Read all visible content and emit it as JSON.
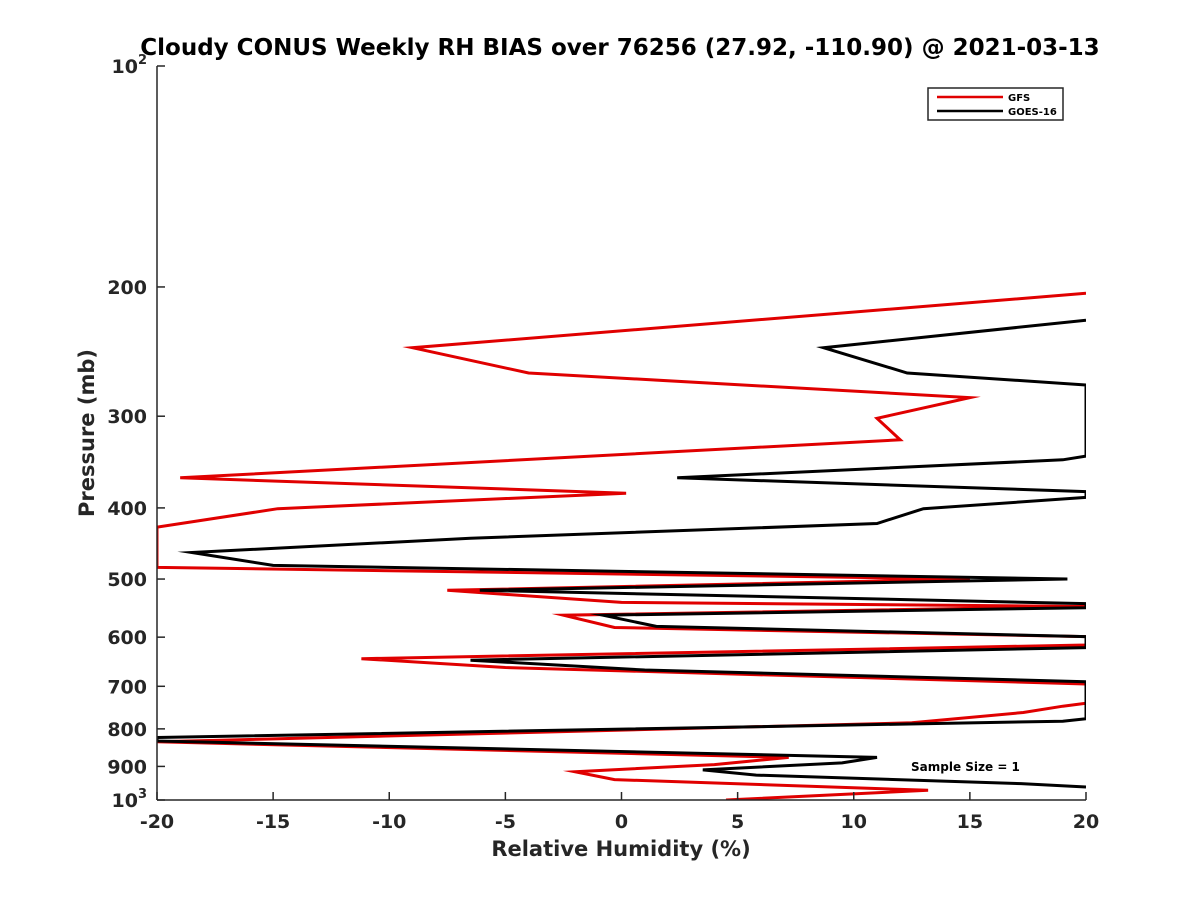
{
  "chart_data": {
    "type": "line",
    "title": "Cloudy CONUS Weekly RH BIAS over 76256 (27.92, -110.90) @ 2021-03-13",
    "xlabel": "Relative Humidity (%)",
    "ylabel": "Pressure (mb)",
    "xlim": [
      -20,
      20
    ],
    "ylim": [
      100,
      1000
    ],
    "y_scale": "log",
    "y_reversed": true,
    "grid": false,
    "legend_position": "top-right",
    "x_ticks": [
      "-20",
      "-15",
      "-10",
      "-5",
      "0",
      "5",
      "10",
      "15",
      "20"
    ],
    "y_ticks": [
      {
        "value": 100,
        "base": "10",
        "exp": "2"
      },
      {
        "value": 200,
        "label": "200"
      },
      {
        "value": 300,
        "label": "300"
      },
      {
        "value": 400,
        "label": "400"
      },
      {
        "value": 500,
        "label": "500"
      },
      {
        "value": 600,
        "label": "600"
      },
      {
        "value": 700,
        "label": "700"
      },
      {
        "value": 800,
        "label": "800"
      },
      {
        "value": 900,
        "label": "900"
      },
      {
        "value": 1000,
        "base": "10",
        "exp": "3"
      }
    ],
    "annotation": "Sample Size = 1",
    "series": [
      {
        "name": "GFS",
        "color": "#e00000",
        "points": [
          [
            20,
            204
          ],
          [
            -9,
            242
          ],
          [
            -4,
            262
          ],
          [
            15,
            283
          ],
          [
            11,
            302
          ],
          [
            12,
            323
          ],
          [
            -19,
            364
          ],
          [
            0.2,
            382
          ],
          [
            -14.8,
            401
          ],
          [
            -20,
            425
          ],
          [
            -20,
            482
          ],
          [
            15,
            500
          ],
          [
            -7.5,
            518
          ],
          [
            0,
            538
          ],
          [
            20,
            545
          ],
          [
            -2.5,
            560
          ],
          [
            -0.3,
            582
          ],
          [
            20,
            599
          ],
          [
            20,
            615
          ],
          [
            -11.2,
            642
          ],
          [
            -5,
            660
          ],
          [
            20,
            695
          ],
          [
            20,
            738
          ],
          [
            19,
            745
          ],
          [
            17.3,
            760
          ],
          [
            12.5,
            785
          ],
          [
            -20,
            833
          ],
          [
            7.2,
            875
          ],
          [
            4,
            895
          ],
          [
            -2,
            915
          ],
          [
            -0.3,
            938
          ],
          [
            13.2,
            970
          ],
          [
            4.5,
            1000
          ]
        ]
      },
      {
        "name": "GOES-16",
        "color": "#000000",
        "points": [
          [
            20,
            222
          ],
          [
            8.7,
            242
          ],
          [
            12.3,
            262
          ],
          [
            20,
            272
          ],
          [
            20,
            340
          ],
          [
            19,
            344
          ],
          [
            2.4,
            364
          ],
          [
            20,
            380
          ],
          [
            20,
            387
          ],
          [
            13,
            401
          ],
          [
            11,
            420
          ],
          [
            -6.5,
            440
          ],
          [
            -18.5,
            460
          ],
          [
            -15,
            479
          ],
          [
            19.2,
            500
          ],
          [
            -6.1,
            518
          ],
          [
            20,
            540
          ],
          [
            20,
            547
          ],
          [
            -0.8,
            560
          ],
          [
            1.5,
            580
          ],
          [
            20,
            599
          ],
          [
            20,
            620
          ],
          [
            -6.5,
            645
          ],
          [
            1,
            665
          ],
          [
            20,
            690
          ],
          [
            20,
            775
          ],
          [
            19,
            781
          ],
          [
            -20,
            822
          ],
          [
            -20,
            831
          ],
          [
            11,
            875
          ],
          [
            9.5,
            890
          ],
          [
            3.5,
            910
          ],
          [
            5.8,
            925
          ],
          [
            17.2,
            950
          ],
          [
            20,
            960
          ]
        ]
      }
    ]
  }
}
